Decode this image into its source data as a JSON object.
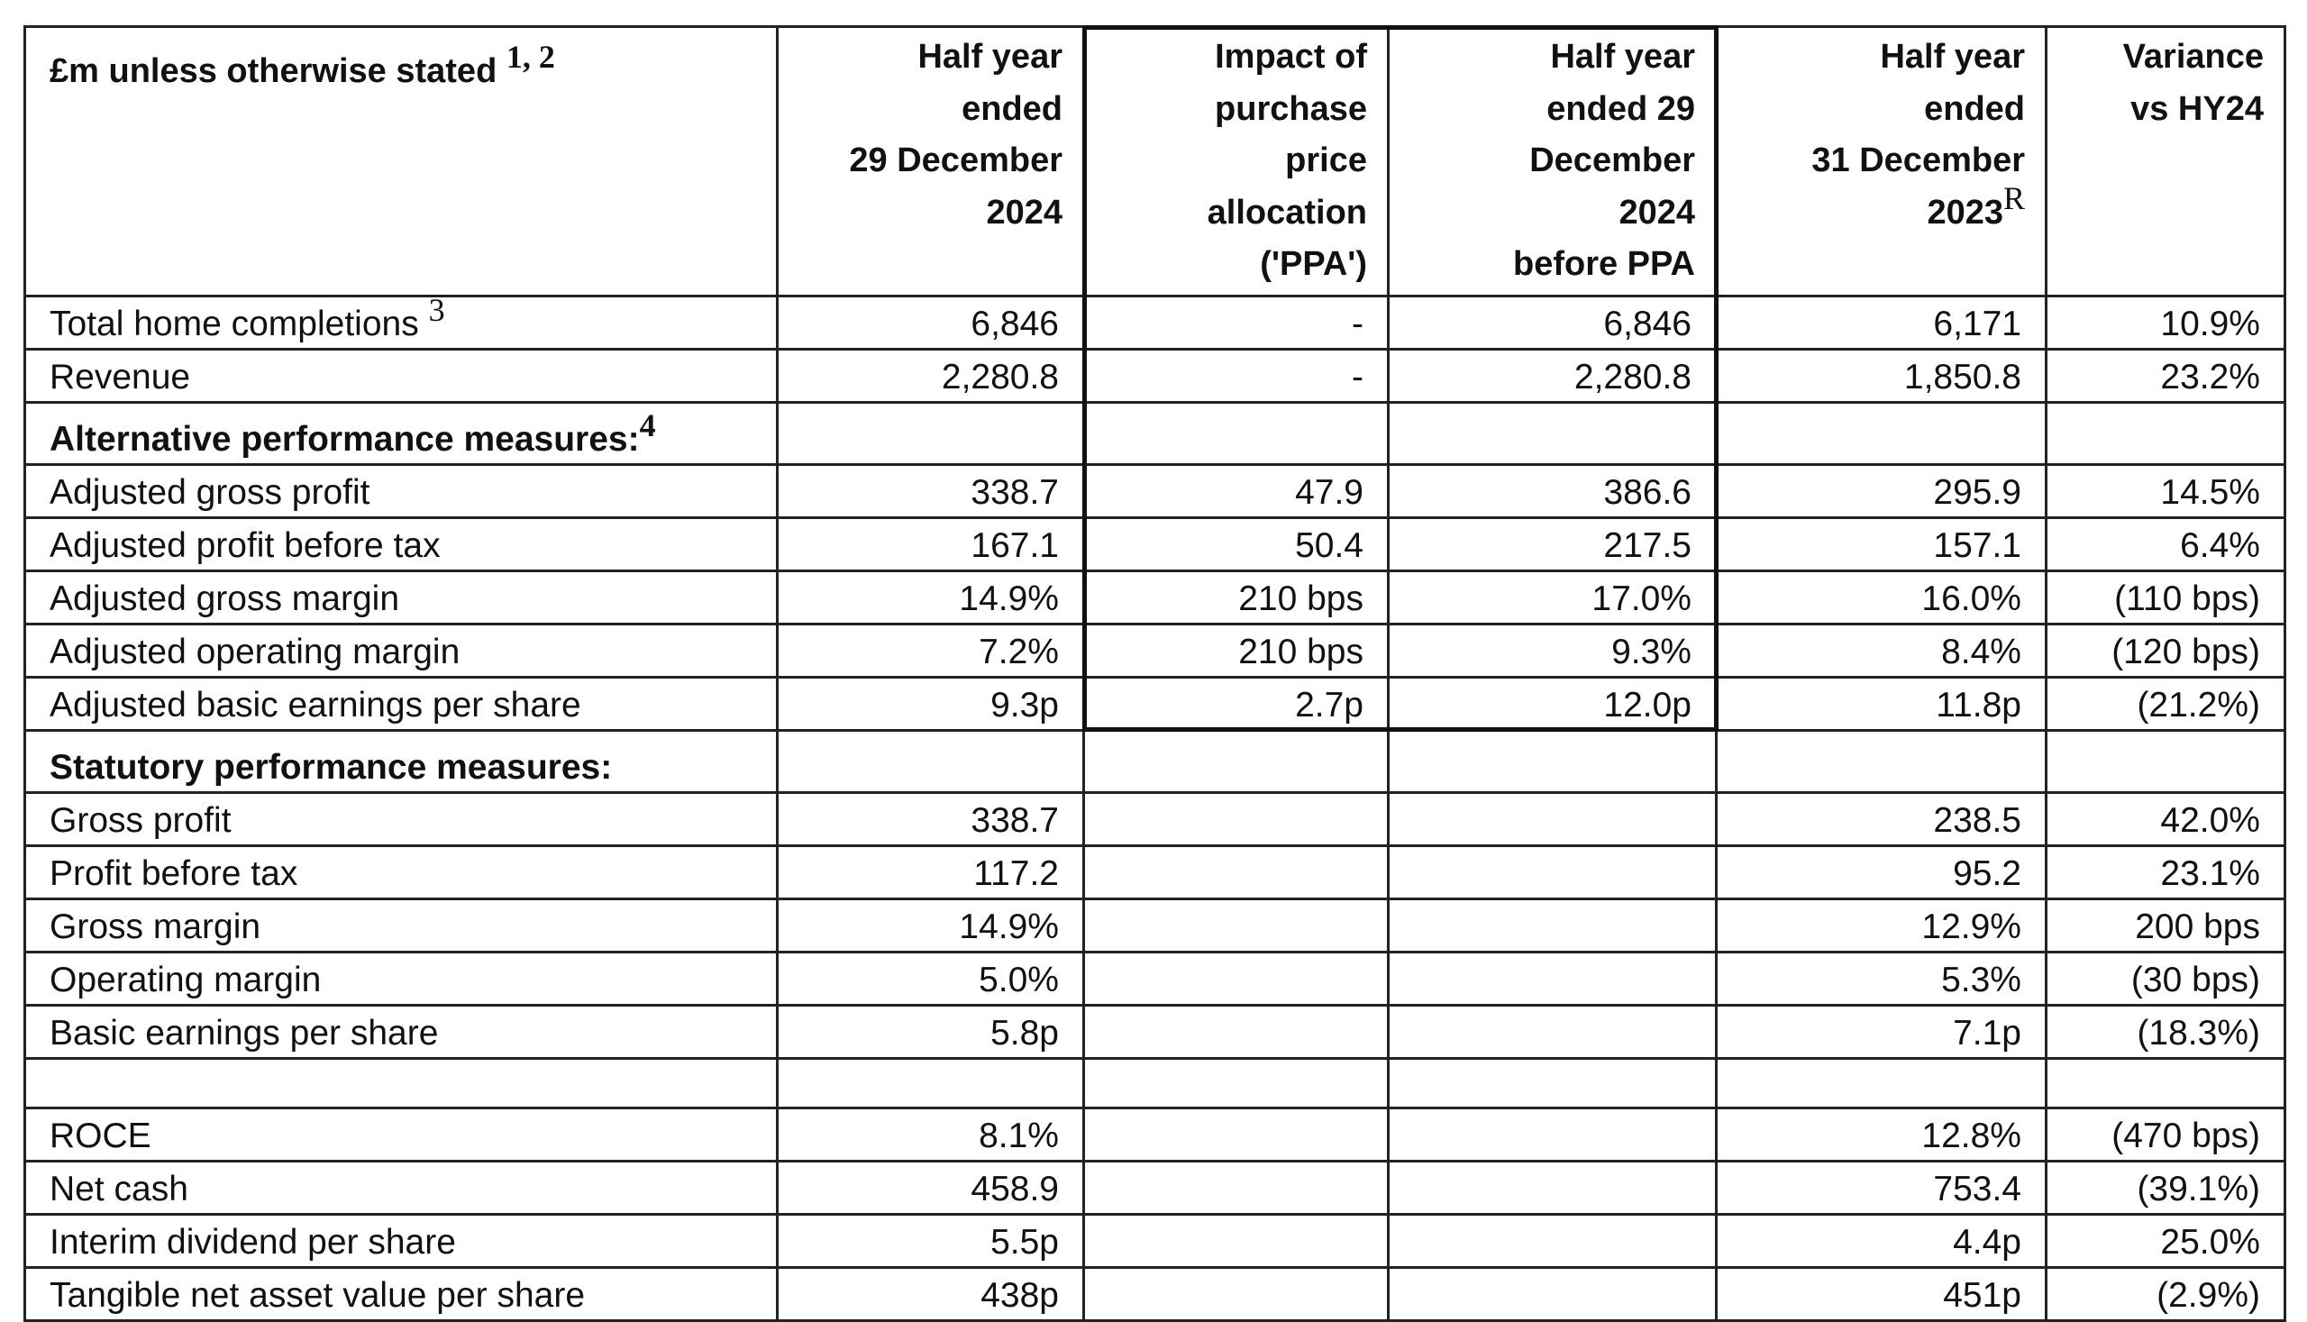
{
  "table": {
    "header": {
      "label": "£m unless otherwise stated",
      "label_footnote": "1, 2",
      "columns": [
        {
          "lines": [
            "Half year",
            "ended",
            "29 December",
            "2024"
          ],
          "superscript": ""
        },
        {
          "lines": [
            "Impact of",
            "purchase",
            "price",
            "allocation",
            "('PPA')"
          ],
          "superscript": ""
        },
        {
          "lines": [
            "Half year",
            "ended 29",
            "December",
            "2024",
            "before PPA"
          ],
          "superscript": ""
        },
        {
          "lines": [
            "Half year",
            "ended",
            "31 December",
            "2023"
          ],
          "superscript": "R"
        },
        {
          "lines": [
            "Variance",
            "vs HY24"
          ],
          "superscript": ""
        }
      ]
    },
    "rows": [
      {
        "type": "data",
        "label": "Total home completions",
        "footnote": "3",
        "values": [
          "6,846",
          "-",
          "6,846",
          "6,171",
          "10.9%"
        ]
      },
      {
        "type": "data",
        "label": "Revenue",
        "footnote": "",
        "values": [
          "2,280.8",
          "-",
          "2,280.8",
          "1,850.8",
          "23.2%"
        ]
      },
      {
        "type": "section",
        "label": "Alternative performance measures:",
        "footnote": "4",
        "values": [
          "",
          "",
          "",
          "",
          ""
        ]
      },
      {
        "type": "data",
        "label": "Adjusted gross profit",
        "footnote": "",
        "values": [
          "338.7",
          "47.9",
          "386.6",
          "295.9",
          "14.5%"
        ]
      },
      {
        "type": "data",
        "label": "Adjusted profit before tax",
        "footnote": "",
        "values": [
          "167.1",
          "50.4",
          "217.5",
          "157.1",
          "6.4%"
        ]
      },
      {
        "type": "data",
        "label": "Adjusted gross margin",
        "footnote": "",
        "values": [
          "14.9%",
          "210 bps",
          "17.0%",
          "16.0%",
          "(110 bps)"
        ]
      },
      {
        "type": "data",
        "label": "Adjusted operating margin",
        "footnote": "",
        "values": [
          "7.2%",
          "210 bps",
          "9.3%",
          "8.4%",
          "(120 bps)"
        ]
      },
      {
        "type": "data",
        "label": "Adjusted basic earnings per share",
        "footnote": "",
        "values": [
          "9.3p",
          "2.7p",
          "12.0p",
          "11.8p",
          "(21.2%)"
        ]
      },
      {
        "type": "section",
        "label": "Statutory performance measures:",
        "footnote": "",
        "values": [
          "",
          "",
          "",
          "",
          ""
        ]
      },
      {
        "type": "data",
        "label": "Gross profit",
        "footnote": "",
        "values": [
          "338.7",
          "",
          "",
          "238.5",
          "42.0%"
        ]
      },
      {
        "type": "data",
        "label": "Profit before tax",
        "footnote": "",
        "values": [
          "117.2",
          "",
          "",
          "95.2",
          "23.1%"
        ]
      },
      {
        "type": "data",
        "label": "Gross margin",
        "footnote": "",
        "values": [
          "14.9%",
          "",
          "",
          "12.9%",
          "200 bps"
        ]
      },
      {
        "type": "data",
        "label": "Operating margin",
        "footnote": "",
        "values": [
          "5.0%",
          "",
          "",
          "5.3%",
          "(30 bps)"
        ]
      },
      {
        "type": "data",
        "label": "Basic earnings per share",
        "footnote": "",
        "values": [
          "5.8p",
          "",
          "",
          "7.1p",
          "(18.3%)"
        ]
      },
      {
        "type": "spacer",
        "label": "",
        "footnote": "",
        "values": [
          "",
          "",
          "",
          "",
          ""
        ]
      },
      {
        "type": "data",
        "label": "ROCE",
        "footnote": "",
        "values": [
          "8.1%",
          "",
          "",
          "12.8%",
          "(470 bps)"
        ]
      },
      {
        "type": "data",
        "label": "Net cash",
        "footnote": "",
        "values": [
          "458.9",
          "",
          "",
          "753.4",
          "(39.1%)"
        ]
      },
      {
        "type": "data",
        "label": "Interim dividend per share",
        "footnote": "",
        "values": [
          "5.5p",
          "",
          "",
          "4.4p",
          "25.0%"
        ]
      },
      {
        "type": "data",
        "label": "Tangible net asset value per share",
        "footnote": "",
        "values": [
          "438p",
          "",
          "",
          "451p",
          "(2.9%)"
        ]
      }
    ]
  }
}
